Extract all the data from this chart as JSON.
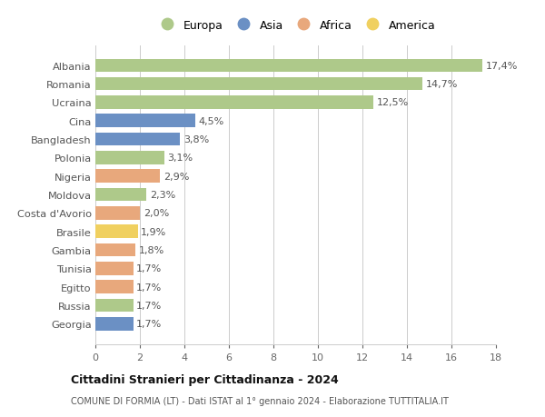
{
  "categories": [
    "Albania",
    "Romania",
    "Ucraina",
    "Cina",
    "Bangladesh",
    "Polonia",
    "Nigeria",
    "Moldova",
    "Costa d'Avorio",
    "Brasile",
    "Gambia",
    "Tunisia",
    "Egitto",
    "Russia",
    "Georgia"
  ],
  "values": [
    17.4,
    14.7,
    12.5,
    4.5,
    3.8,
    3.1,
    2.9,
    2.3,
    2.0,
    1.9,
    1.8,
    1.7,
    1.7,
    1.7,
    1.7
  ],
  "labels": [
    "17,4%",
    "14,7%",
    "12,5%",
    "4,5%",
    "3,8%",
    "3,1%",
    "2,9%",
    "2,3%",
    "2,0%",
    "1,9%",
    "1,8%",
    "1,7%",
    "1,7%",
    "1,7%",
    "1,7%"
  ],
  "continents": [
    "Europa",
    "Europa",
    "Europa",
    "Asia",
    "Asia",
    "Europa",
    "Africa",
    "Europa",
    "Africa",
    "America",
    "Africa",
    "Africa",
    "Africa",
    "Europa",
    "Asia"
  ],
  "continent_colors": {
    "Europa": "#aec98a",
    "Asia": "#6b90c4",
    "Africa": "#e8a87c",
    "America": "#f0d060"
  },
  "legend_labels": [
    "Europa",
    "Asia",
    "Africa",
    "America"
  ],
  "legend_colors": [
    "#aec98a",
    "#6b90c4",
    "#e8a87c",
    "#f0d060"
  ],
  "title": "Cittadini Stranieri per Cittadinanza - 2024",
  "subtitle": "COMUNE DI FORMIA (LT) - Dati ISTAT al 1° gennaio 2024 - Elaborazione TUTTITALIA.IT",
  "xlim": [
    0,
    18
  ],
  "xticks": [
    0,
    2,
    4,
    6,
    8,
    10,
    12,
    14,
    16,
    18
  ],
  "background_color": "#ffffff",
  "grid_color": "#cccccc",
  "bar_height": 0.72
}
